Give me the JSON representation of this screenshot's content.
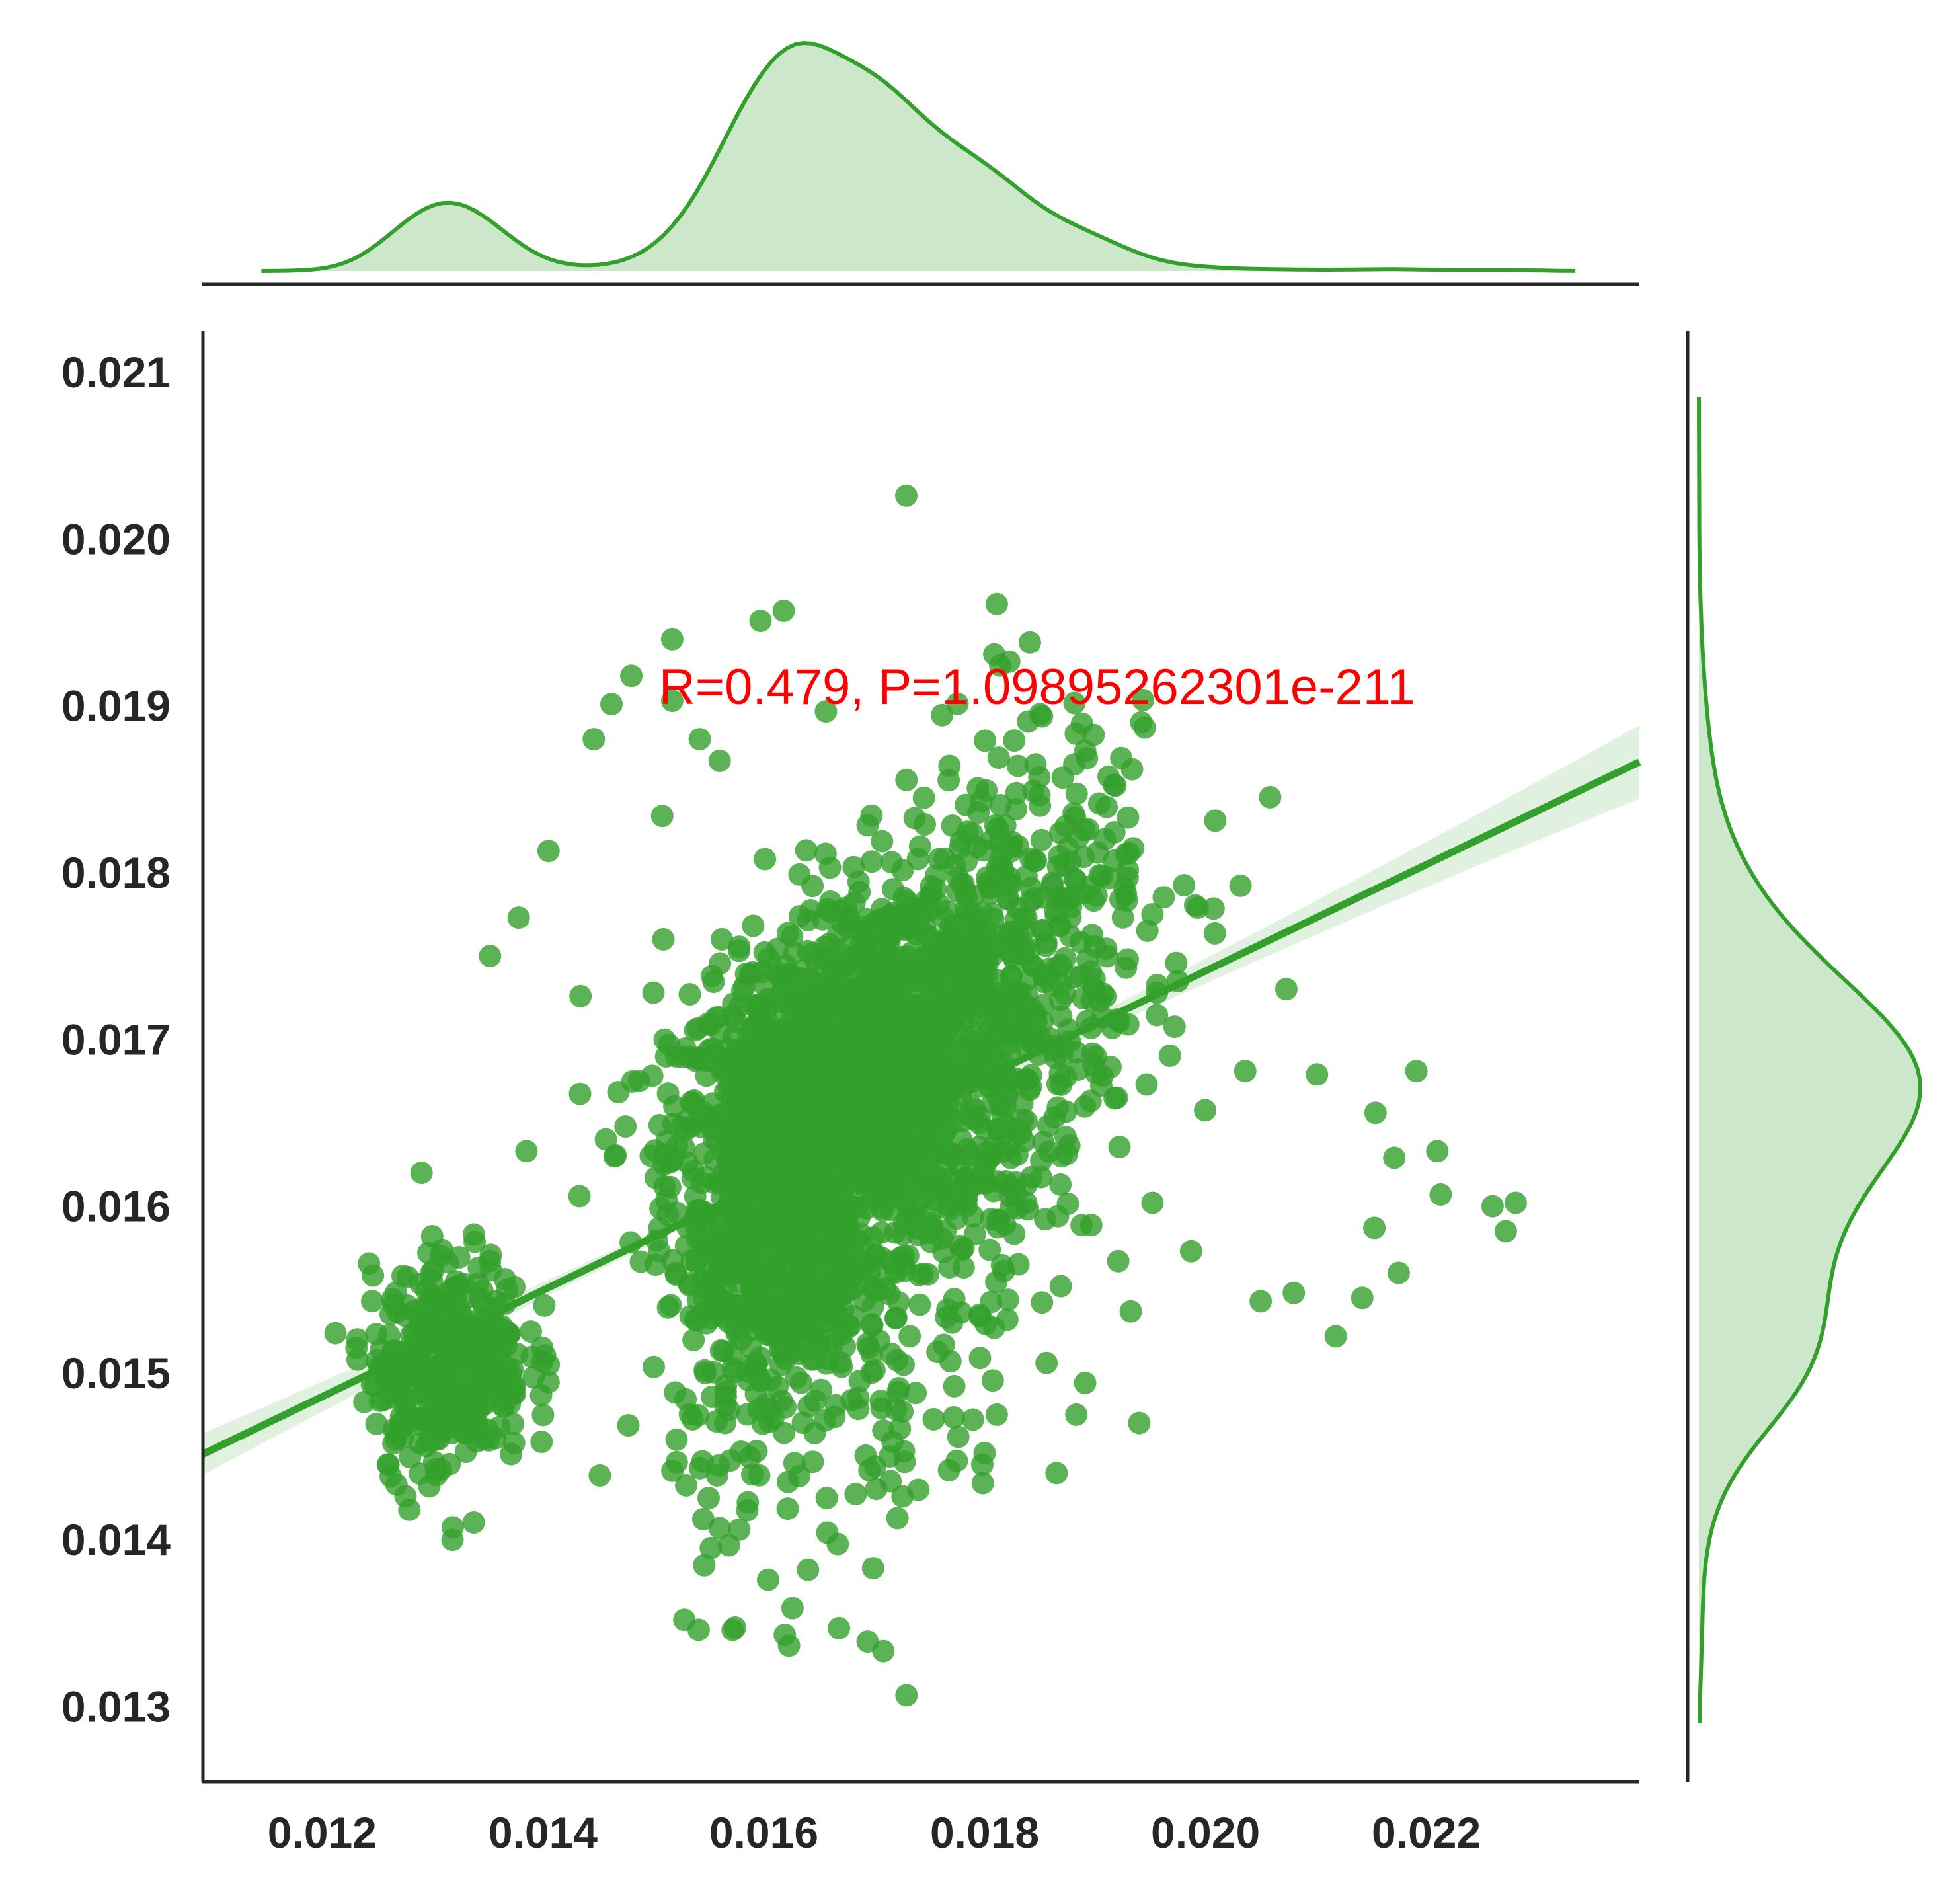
{
  "chart_data": {
    "type": "scatter",
    "title": "",
    "xlabel": "",
    "ylabel": "",
    "xlim": [
      0.01092,
      0.02393
    ],
    "ylim": [
      0.01255,
      0.02125
    ],
    "grid": false,
    "legend": "none",
    "x_ticks": [
      "0.012",
      "0.014",
      "0.016",
      "0.018",
      "0.020",
      "0.022"
    ],
    "y_ticks": [
      "0.013",
      "0.014",
      "0.015",
      "0.016",
      "0.017",
      "0.018",
      "0.019",
      "0.020",
      "0.021"
    ],
    "annotation": {
      "text": "R=0.479, P=1.09895262301e-211",
      "x": 0.01505,
      "y": 0.01901,
      "color": "#ff0000"
    },
    "color": "#33a02c",
    "regression": {
      "slope": 0.319,
      "intercept": 0.01103,
      "ci_halfwidth_at_edges": 0.00022
    },
    "points_sample": [
      [
        0.01729,
        0.02026
      ],
      [
        0.01618,
        0.01957
      ],
      [
        0.01597,
        0.01951
      ],
      [
        0.01811,
        0.01961
      ],
      [
        0.01517,
        0.0194
      ],
      [
        0.01841,
        0.01938
      ],
      [
        0.0148,
        0.01918
      ],
      [
        0.01462,
        0.01901
      ],
      [
        0.01517,
        0.01903
      ],
      [
        0.01446,
        0.0188
      ],
      [
        0.01542,
        0.0188
      ],
      [
        0.0156,
        0.01867
      ],
      [
        0.01508,
        0.01834
      ],
      [
        0.01405,
        0.01813
      ],
      [
        0.01378,
        0.01773
      ],
      [
        0.01352,
        0.0175
      ],
      [
        0.01434,
        0.01726
      ],
      [
        0.01553,
        0.01738
      ],
      [
        0.01993,
        0.01779
      ],
      [
        0.01952,
        0.01775
      ],
      [
        0.01975,
        0.01735
      ],
      [
        0.01928,
        0.01743
      ],
      [
        0.0193,
        0.01709
      ],
      [
        0.01956,
        0.01728
      ],
      [
        0.02036,
        0.01681
      ],
      [
        0.02101,
        0.01679
      ],
      [
        0.02191,
        0.01681
      ],
      [
        0.02154,
        0.01656
      ],
      [
        0.02171,
        0.01629
      ],
      [
        0.0221,
        0.01633
      ],
      [
        0.0226,
        0.016
      ],
      [
        0.02281,
        0.01602
      ],
      [
        0.02272,
        0.01585
      ],
      [
        0.02213,
        0.01607
      ],
      [
        0.02153,
        0.01587
      ],
      [
        0.02175,
        0.0156
      ],
      [
        0.02142,
        0.01545
      ],
      [
        0.02118,
        0.01522
      ],
      [
        0.0208,
        0.01548
      ],
      [
        0.0205,
        0.01543
      ],
      [
        0.01952,
        0.01602
      ],
      [
        0.01987,
        0.01573
      ],
      [
        0.01921,
        0.01567
      ],
      [
        0.0194,
        0.0147
      ],
      [
        0.01891,
        0.01494
      ],
      [
        0.01883,
        0.01475
      ],
      [
        0.01856,
        0.01506
      ],
      [
        0.01811,
        0.01475
      ],
      [
        0.018,
        0.01452
      ],
      [
        0.01769,
        0.01507
      ],
      [
        0.01714,
        0.0145
      ],
      [
        0.0174,
        0.0143
      ],
      [
        0.01721,
        0.01413
      ],
      [
        0.01657,
        0.01425
      ],
      [
        0.01699,
        0.01383
      ],
      [
        0.01668,
        0.01347
      ],
      [
        0.01694,
        0.01339
      ],
      [
        0.01626,
        0.01359
      ],
      [
        0.01619,
        0.01343
      ],
      [
        0.0164,
        0.01382
      ],
      [
        0.0156,
        0.01407
      ],
      [
        0.0155,
        0.01425
      ],
      [
        0.01552,
        0.01395
      ],
      [
        0.01528,
        0.01352
      ],
      [
        0.01541,
        0.01346
      ],
      [
        0.01521,
        0.0146
      ],
      [
        0.01547,
        0.015
      ],
      [
        0.0129,
        0.0162
      ],
      [
        0.01279,
        0.01418
      ],
      [
        0.01318,
        0.014
      ],
      [
        0.01232,
        0.01508
      ],
      [
        0.0126,
        0.01445
      ],
      [
        0.01271,
        0.0147
      ],
      [
        0.01385,
        0.01633
      ],
      [
        0.01433,
        0.01606
      ],
      [
        0.01457,
        0.0164
      ],
      [
        0.01487,
        0.01675
      ],
      [
        0.015,
        0.01728
      ],
      [
        0.01509,
        0.0176
      ],
      [
        0.01562,
        0.0176
      ]
    ]
  }
}
